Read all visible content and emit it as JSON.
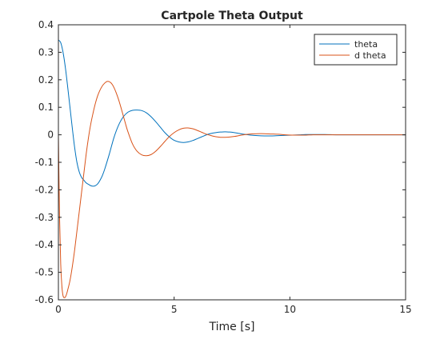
{
  "chart_data": {
    "type": "line",
    "title": "Cartpole Theta Output",
    "xlabel": "Time [s]",
    "ylabel": "",
    "xlim": [
      0,
      15
    ],
    "ylim": [
      -0.6,
      0.4
    ],
    "grid": false,
    "legend_position": "top-right",
    "xticks": [
      0,
      5,
      10,
      15
    ],
    "xtick_labels": [
      "0",
      "5",
      "10",
      "15"
    ],
    "yticks": [
      -0.6,
      -0.5,
      -0.4,
      -0.3,
      -0.2,
      -0.1,
      0,
      0.1,
      0.2,
      0.3,
      0.4
    ],
    "ytick_labels": [
      "-0.6",
      "-0.5",
      "-0.4",
      "-0.3",
      "-0.2",
      "-0.1",
      "0",
      "0.1",
      "0.2",
      "0.3",
      "0.4"
    ],
    "series": [
      {
        "name": "theta",
        "color": "#0072BD",
        "x": [
          0,
          0.1,
          0.2,
          0.3,
          0.4,
          0.5,
          0.6,
          0.7,
          0.8,
          0.9,
          1.0,
          1.1,
          1.2,
          1.3,
          1.4,
          1.5,
          1.6,
          1.7,
          1.8,
          1.9,
          2.0,
          2.2,
          2.4,
          2.6,
          2.8,
          3.0,
          3.2,
          3.4,
          3.6,
          3.8,
          4.0,
          4.2,
          4.4,
          4.6,
          4.8,
          5.0,
          5.2,
          5.4,
          5.6,
          5.8,
          6.0,
          6.2,
          6.4,
          6.6,
          6.8,
          7.0,
          7.2,
          7.4,
          7.6,
          7.8,
          8.0,
          8.3,
          8.6,
          8.9,
          9.2,
          9.5,
          9.8,
          10.1,
          10.4,
          10.7,
          11.0,
          11.5,
          12.0,
          12.5,
          13.0,
          13.5,
          14.0,
          14.5,
          15.0
        ],
        "y": [
          0.345,
          0.335,
          0.3,
          0.245,
          0.175,
          0.1,
          0.025,
          -0.045,
          -0.1,
          -0.135,
          -0.155,
          -0.165,
          -0.175,
          -0.18,
          -0.185,
          -0.187,
          -0.185,
          -0.178,
          -0.165,
          -0.148,
          -0.125,
          -0.07,
          -0.01,
          0.035,
          0.065,
          0.082,
          0.089,
          0.09,
          0.088,
          0.08,
          0.066,
          0.048,
          0.028,
          0.008,
          -0.008,
          -0.02,
          -0.026,
          -0.028,
          -0.026,
          -0.021,
          -0.014,
          -0.007,
          0.0,
          0.005,
          0.008,
          0.01,
          0.011,
          0.01,
          0.008,
          0.005,
          0.002,
          -0.001,
          -0.003,
          -0.004,
          -0.004,
          -0.003,
          -0.002,
          -0.001,
          0.0,
          0.001,
          0.001,
          0.001,
          0.0,
          0.0,
          0.0,
          0.0,
          0.0,
          0.0,
          0.0
        ]
      },
      {
        "name": "d theta",
        "color": "#D95319",
        "x": [
          0,
          0.05,
          0.1,
          0.15,
          0.2,
          0.25,
          0.3,
          0.35,
          0.4,
          0.5,
          0.6,
          0.7,
          0.8,
          0.9,
          1.0,
          1.1,
          1.2,
          1.3,
          1.4,
          1.5,
          1.6,
          1.7,
          1.8,
          1.9,
          2.0,
          2.1,
          2.2,
          2.3,
          2.4,
          2.5,
          2.6,
          2.7,
          2.8,
          2.9,
          3.0,
          3.2,
          3.4,
          3.6,
          3.8,
          4.0,
          4.2,
          4.4,
          4.6,
          4.8,
          5.0,
          5.2,
          5.4,
          5.6,
          5.8,
          6.0,
          6.2,
          6.4,
          6.6,
          6.8,
          7.0,
          7.2,
          7.4,
          7.6,
          7.8,
          8.0,
          8.3,
          8.6,
          8.9,
          9.2,
          9.5,
          9.8,
          10.1,
          10.4,
          10.7,
          11.0,
          11.5,
          12.0,
          12.5,
          13.0,
          13.5,
          14.0,
          14.5,
          15.0
        ],
        "y": [
          0.0,
          -0.3,
          -0.47,
          -0.55,
          -0.585,
          -0.592,
          -0.59,
          -0.58,
          -0.565,
          -0.53,
          -0.48,
          -0.42,
          -0.35,
          -0.28,
          -0.21,
          -0.14,
          -0.07,
          -0.01,
          0.04,
          0.08,
          0.115,
          0.143,
          0.163,
          0.178,
          0.188,
          0.194,
          0.193,
          0.186,
          0.172,
          0.152,
          0.128,
          0.1,
          0.07,
          0.04,
          0.012,
          -0.033,
          -0.06,
          -0.073,
          -0.076,
          -0.072,
          -0.06,
          -0.043,
          -0.024,
          -0.006,
          0.008,
          0.018,
          0.024,
          0.025,
          0.022,
          0.016,
          0.009,
          0.002,
          -0.003,
          -0.007,
          -0.009,
          -0.009,
          -0.008,
          -0.006,
          -0.003,
          0.0,
          0.003,
          0.004,
          0.004,
          0.003,
          0.002,
          0.0,
          -0.001,
          -0.001,
          -0.001,
          0.0,
          0.0,
          0.0,
          0.0,
          0.0,
          0.0,
          0.0,
          0.0,
          0.0
        ]
      }
    ]
  }
}
